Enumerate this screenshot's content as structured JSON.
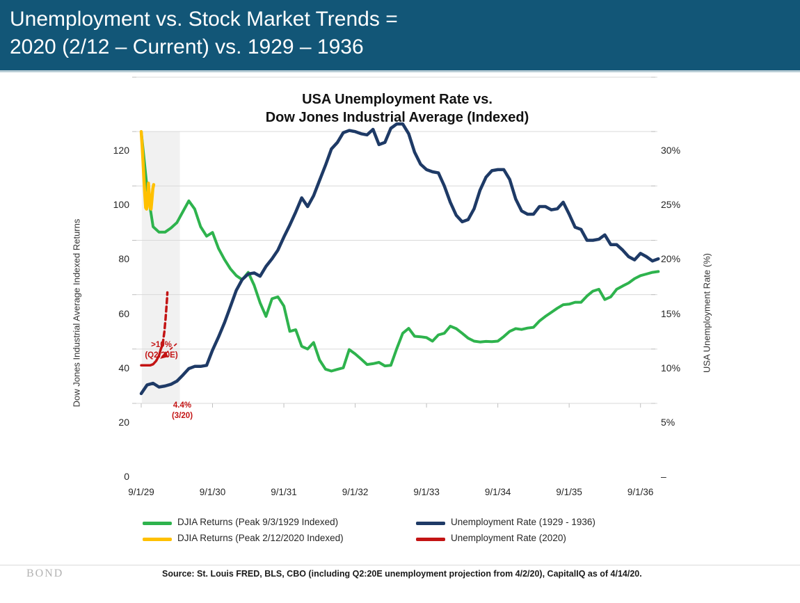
{
  "header": {
    "title_line1": "Unemployment vs. Stock Market Trends =",
    "title_line2": "2020 (2/12 – Current) vs. 1929 – 1936"
  },
  "footer": {
    "brand": "BOND",
    "source": "Source: St. Louis FRED, BLS, CBO (including Q2:20E unemployment projection from 4/2/20), CapitalIQ as of 4/14/20."
  },
  "colors": {
    "header_bg": "#125677",
    "djia_1929": "#2eb34d",
    "djia_2020": "#ffc000",
    "unemployment_1929": "#1e3a66",
    "unemployment_2020": "#c31414",
    "gridline": "#d9d9d9",
    "shaded_band": "#f1f1f1"
  },
  "chart_data": {
    "type": "line",
    "title_line1": "USA Unemployment Rate vs.",
    "title_line2": "Dow Jones Industrial Average (Indexed)",
    "left_axis": {
      "label": "Dow Jones Industrial Average Indexed Returns",
      "ticks": [
        0,
        20,
        40,
        60,
        80,
        100,
        120
      ],
      "range": [
        0,
        120
      ]
    },
    "right_axis": {
      "label": "USA Unemployment Rate (%)",
      "tick_labels": [
        "–",
        "5%",
        "10%",
        "15%",
        "20%",
        "25%",
        "30%"
      ],
      "range_pct": [
        0,
        30
      ]
    },
    "x_axis": {
      "tick_months": [
        0,
        12,
        24,
        36,
        48,
        60,
        72,
        84
      ],
      "tick_labels": [
        "9/1/29",
        "9/1/30",
        "9/1/31",
        "9/1/32",
        "9/1/33",
        "9/1/34",
        "9/1/35",
        "9/1/36"
      ]
    },
    "shaded_region": {
      "start_month": 0.1,
      "end_month": 6.5,
      "top_value": 100,
      "bottom_value": 0
    },
    "series": [
      {
        "name": "DJIA Returns (Peak 9/3/1929 Indexed)",
        "color": "#2eb34d",
        "axis": "left",
        "width": 4,
        "dash": "",
        "start_month": 0,
        "step_months": 1,
        "values": [
          100,
          79,
          65,
          63,
          63,
          64.5,
          66.5,
          70.5,
          74.5,
          71.5,
          65,
          61.5,
          62.9,
          57,
          53,
          49.5,
          47,
          45.5,
          48.2,
          43.5,
          37,
          32,
          38.5,
          39.2,
          35.8,
          26.5,
          27.1,
          21,
          20,
          22.4,
          16,
          12.6,
          11.9,
          12.5,
          13.1,
          19.8,
          18.2,
          16.3,
          14.3,
          14.6,
          15.1,
          13.8,
          14,
          20.2,
          25.8,
          27.6,
          24.7,
          24.5,
          24.2,
          22.9,
          25.2,
          25.8,
          28.4,
          27.5,
          25.8,
          24,
          22.9,
          22.6,
          22.8,
          22.7,
          22.9,
          24.6,
          26.5,
          27.5,
          27.2,
          27.7,
          28,
          30.3,
          32,
          33.5,
          35,
          36.3,
          36.5,
          37.2,
          37.2,
          39.5,
          41.3,
          42,
          38.2,
          39.2,
          42,
          43.2,
          44.3,
          45.9,
          47,
          47.6,
          48.2,
          48.5
        ]
      },
      {
        "name": "DJIA Returns (Peak 2/12/2020 Indexed)",
        "color": "#ffc000",
        "axis": "left",
        "width": 4.5,
        "dash": "",
        "x_months": [
          0,
          0.15,
          0.3,
          0.45,
          0.6,
          0.75,
          0.9,
          1.05,
          1.2,
          1.35,
          1.5,
          1.65,
          1.8,
          1.95,
          2.1
        ],
        "values": [
          100,
          95,
          89,
          83,
          77,
          72,
          71.5,
          75,
          81,
          77,
          72,
          71.5,
          75,
          79,
          80.5
        ]
      },
      {
        "name": "Unemployment Rate (1929 - 1936)",
        "color": "#1e3a66",
        "axis": "right",
        "width": 4.5,
        "dash": "",
        "start_month": 0,
        "step_months": 1,
        "values": [
          0.9,
          1.7,
          1.85,
          1.5,
          1.6,
          1.75,
          2.05,
          2.6,
          3.2,
          3.4,
          3.4,
          3.5,
          4.9,
          6.1,
          7.4,
          8.9,
          10.4,
          11.4,
          11.9,
          12.0,
          11.7,
          12.6,
          13.3,
          14.1,
          15.3,
          16.4,
          17.6,
          18.9,
          18.1,
          19.1,
          20.5,
          21.9,
          23.4,
          24.0,
          24.9,
          25.1,
          25.0,
          24.8,
          24.7,
          25.2,
          23.8,
          24.0,
          25.3,
          25.7,
          25.7,
          24.8,
          23.1,
          22.0,
          21.5,
          21.3,
          21.2,
          20.0,
          18.5,
          17.3,
          16.7,
          16.9,
          17.9,
          19.6,
          20.8,
          21.4,
          21.5,
          21.5,
          20.6,
          18.8,
          17.7,
          17.4,
          17.4,
          18.1,
          18.1,
          17.8,
          17.9,
          18.5,
          17.4,
          16.2,
          16.0,
          15.0,
          15.0,
          15.1,
          15.5,
          14.6,
          14.6,
          14.1,
          13.5,
          13.2,
          13.8,
          13.5,
          13.1,
          13.3
        ]
      },
      {
        "name": "Unemployment Rate (2020)",
        "color": "#c31414",
        "axis": "right",
        "width": 3.5,
        "dash": "",
        "x_months": [
          0,
          0.5,
          1.0,
          1.5,
          2.0,
          2.5,
          3.0,
          3.3,
          3.6
        ],
        "values": [
          3.5,
          3.5,
          3.5,
          3.5,
          3.6,
          3.9,
          4.4,
          5.0,
          5.4
        ]
      },
      {
        "name": "Unemployment Rate (2020) Q2 projection (dashed)",
        "color": "#c31414",
        "axis": "right",
        "width": 3.5,
        "dash": "7,5",
        "x_months": [
          3.6,
          3.9,
          4.1,
          4.25,
          4.35,
          4.4
        ],
        "values": [
          5.4,
          6.6,
          7.8,
          8.9,
          9.7,
          10.2
        ]
      }
    ],
    "annotations": [
      {
        "line1": ">10%",
        "line2": "(Q2:20E)"
      },
      {
        "line1": "4.4%",
        "line2": "(3/20)"
      }
    ]
  },
  "legend": {
    "items": [
      {
        "label": "DJIA Returns (Peak 9/3/1929 Indexed)",
        "color": "#2eb34d"
      },
      {
        "label": "DJIA Returns (Peak 2/12/2020 Indexed)",
        "color": "#ffc000"
      },
      {
        "label": "Unemployment Rate (1929 - 1936)",
        "color": "#1e3a66"
      },
      {
        "label": "Unemployment Rate (2020)",
        "color": "#c31414"
      }
    ]
  }
}
